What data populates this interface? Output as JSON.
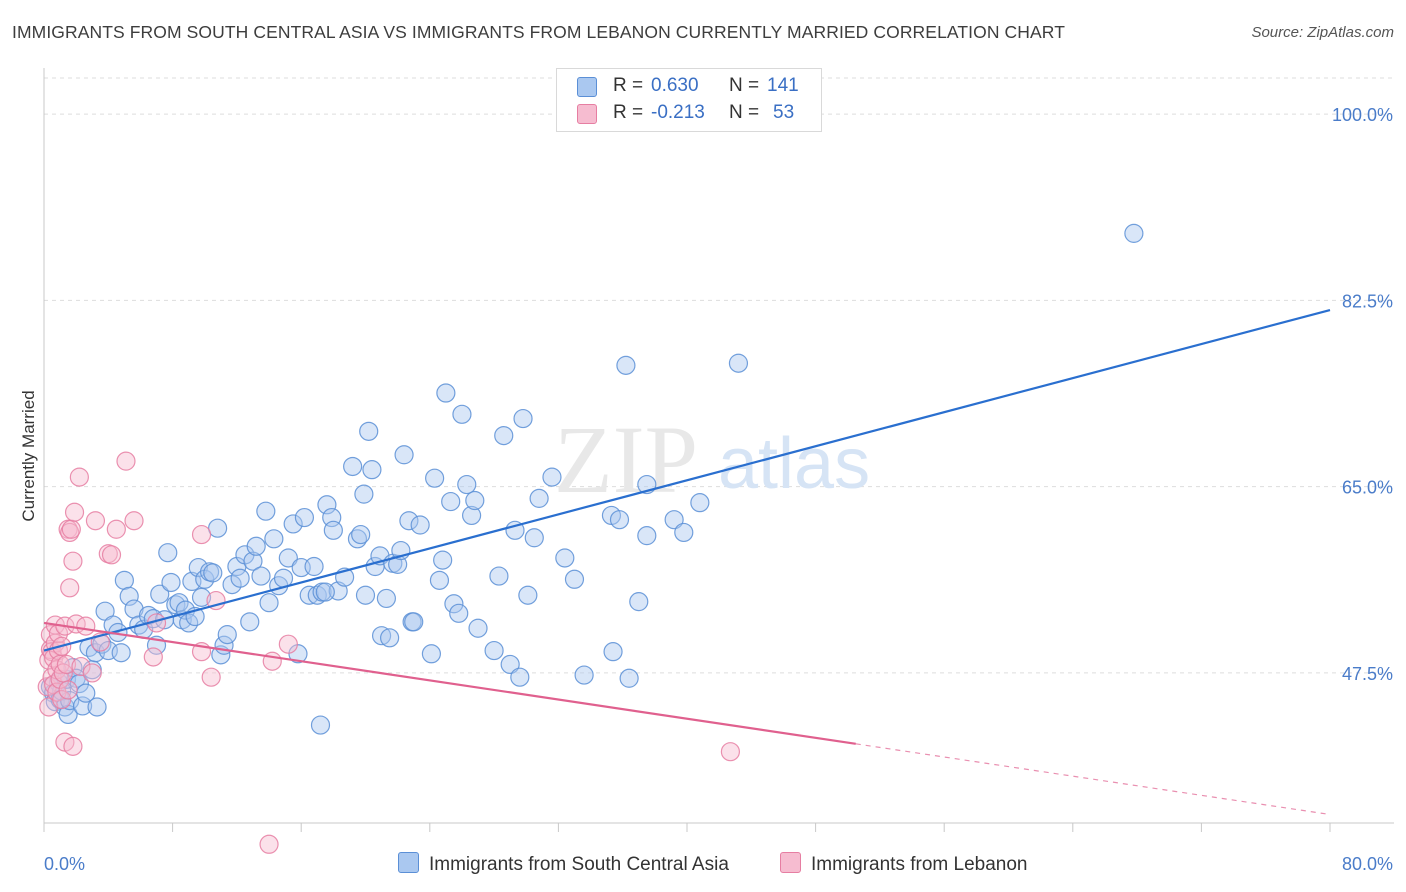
{
  "title": "IMMIGRANTS FROM SOUTH CENTRAL ASIA VS IMMIGRANTS FROM LEBANON CURRENTLY MARRIED CORRELATION CHART",
  "source": "Source: ZipAtlas.com",
  "watermark": {
    "zip": "ZIP",
    "atlas": "atlas"
  },
  "legend": {
    "r_label": "R =",
    "n_label": "N =",
    "entries": [
      {
        "r": "0.630",
        "n": "141"
      },
      {
        "r": "-0.213",
        "n": "53"
      }
    ]
  },
  "colors": {
    "blue_fill": "#aac8f0",
    "blue_stroke": "#5b8fd6",
    "blue_line": "#2a6fcf",
    "pink_fill": "#f6bcd0",
    "pink_stroke": "#e67ea2",
    "pink_line": "#e0608e",
    "tick_text": "#4a7cc9",
    "grid": "#dddddd"
  },
  "chart_data": {
    "type": "scatter",
    "title": "IMMIGRANTS FROM SOUTH CENTRAL ASIA VS IMMIGRANTS FROM LEBANON CURRENTLY MARRIED CORRELATION CHART",
    "xlabel": "",
    "ylabel": "Currently Married",
    "xlim": [
      0,
      80
    ],
    "ylim": [
      33.4,
      103.4
    ],
    "x_tick_labels": [
      "0.0%",
      "80.0%"
    ],
    "y_ticks": [
      47.5,
      65.0,
      82.5,
      100.0
    ],
    "y_tick_labels": [
      "47.5%",
      "65.0%",
      "82.5%",
      "100.0%"
    ],
    "grid": true,
    "legend_position": "bottom",
    "series": [
      {
        "name": "Immigrants from South Central Asia",
        "color": "#aac8f0",
        "trend": {
          "x": [
            0,
            80
          ],
          "y": [
            49.6,
            81.6
          ],
          "solid_to": 80
        },
        "points": [
          [
            0.4,
            46.2
          ],
          [
            0.6,
            45.6
          ],
          [
            0.7,
            44.8
          ],
          [
            0.9,
            46.6
          ],
          [
            1.0,
            45.0
          ],
          [
            1.1,
            45.8
          ],
          [
            1.3,
            44.3
          ],
          [
            1.4,
            46.9
          ],
          [
            1.5,
            43.6
          ],
          [
            1.6,
            44.9
          ],
          [
            1.8,
            48.0
          ],
          [
            2.0,
            47.0
          ],
          [
            2.2,
            46.5
          ],
          [
            2.4,
            44.4
          ],
          [
            2.6,
            45.6
          ],
          [
            2.8,
            49.9
          ],
          [
            3.0,
            47.8
          ],
          [
            3.2,
            49.4
          ],
          [
            3.3,
            44.3
          ],
          [
            3.6,
            50.2
          ],
          [
            3.8,
            53.3
          ],
          [
            4.0,
            49.6
          ],
          [
            4.3,
            52.0
          ],
          [
            4.6,
            51.3
          ],
          [
            4.8,
            49.4
          ],
          [
            5.0,
            56.2
          ],
          [
            5.3,
            54.7
          ],
          [
            5.6,
            53.5
          ],
          [
            5.9,
            52.0
          ],
          [
            6.2,
            51.6
          ],
          [
            6.5,
            52.9
          ],
          [
            6.8,
            52.6
          ],
          [
            7.0,
            50.1
          ],
          [
            7.2,
            54.9
          ],
          [
            7.5,
            52.5
          ],
          [
            7.7,
            58.8
          ],
          [
            7.9,
            56.0
          ],
          [
            8.2,
            53.9
          ],
          [
            8.4,
            54.1
          ],
          [
            8.6,
            52.5
          ],
          [
            8.8,
            53.4
          ],
          [
            9.0,
            52.2
          ],
          [
            9.2,
            56.1
          ],
          [
            9.4,
            52.8
          ],
          [
            9.6,
            57.4
          ],
          [
            9.8,
            54.6
          ],
          [
            10.0,
            56.3
          ],
          [
            10.3,
            57.0
          ],
          [
            10.5,
            56.9
          ],
          [
            10.8,
            61.1
          ],
          [
            11.0,
            49.2
          ],
          [
            11.2,
            50.1
          ],
          [
            11.4,
            51.1
          ],
          [
            11.7,
            55.8
          ],
          [
            12.0,
            57.5
          ],
          [
            12.2,
            56.4
          ],
          [
            12.5,
            58.6
          ],
          [
            12.8,
            52.3
          ],
          [
            13.0,
            58.0
          ],
          [
            13.2,
            59.4
          ],
          [
            13.5,
            56.6
          ],
          [
            13.8,
            62.7
          ],
          [
            14.0,
            54.1
          ],
          [
            14.3,
            60.1
          ],
          [
            14.6,
            55.7
          ],
          [
            14.9,
            56.4
          ],
          [
            15.2,
            58.3
          ],
          [
            15.5,
            61.5
          ],
          [
            15.8,
            49.3
          ],
          [
            16.0,
            57.4
          ],
          [
            16.2,
            62.1
          ],
          [
            16.5,
            54.8
          ],
          [
            16.8,
            57.5
          ],
          [
            17.0,
            54.8
          ],
          [
            17.3,
            55.1
          ],
          [
            17.6,
            63.3
          ],
          [
            17.9,
            62.1
          ],
          [
            18.0,
            60.9
          ],
          [
            18.3,
            55.2
          ],
          [
            17.5,
            55.1
          ],
          [
            17.2,
            42.6
          ],
          [
            18.7,
            56.5
          ],
          [
            19.2,
            66.9
          ],
          [
            19.5,
            60.1
          ],
          [
            19.7,
            60.5
          ],
          [
            19.9,
            64.3
          ],
          [
            20.0,
            54.8
          ],
          [
            20.2,
            70.2
          ],
          [
            20.4,
            66.6
          ],
          [
            20.6,
            57.5
          ],
          [
            20.9,
            58.5
          ],
          [
            21.0,
            51.0
          ],
          [
            21.3,
            54.5
          ],
          [
            21.5,
            50.8
          ],
          [
            21.7,
            57.8
          ],
          [
            22.0,
            57.7
          ],
          [
            22.2,
            59.0
          ],
          [
            22.4,
            68.0
          ],
          [
            22.7,
            61.8
          ],
          [
            22.9,
            52.3
          ],
          [
            23.4,
            61.4
          ],
          [
            23.0,
            52.3
          ],
          [
            24.1,
            49.3
          ],
          [
            24.3,
            65.8
          ],
          [
            24.6,
            56.2
          ],
          [
            24.8,
            58.1
          ],
          [
            25.0,
            73.8
          ],
          [
            25.3,
            63.6
          ],
          [
            25.5,
            54.0
          ],
          [
            25.8,
            53.1
          ],
          [
            26.0,
            71.8
          ],
          [
            26.3,
            65.2
          ],
          [
            26.6,
            62.3
          ],
          [
            26.8,
            63.7
          ],
          [
            27.0,
            51.7
          ],
          [
            28.0,
            49.6
          ],
          [
            28.3,
            56.6
          ],
          [
            28.6,
            69.8
          ],
          [
            29.0,
            48.3
          ],
          [
            29.3,
            60.9
          ],
          [
            29.6,
            47.1
          ],
          [
            29.8,
            71.4
          ],
          [
            30.1,
            54.8
          ],
          [
            30.5,
            60.2
          ],
          [
            30.8,
            63.9
          ],
          [
            31.6,
            65.9
          ],
          [
            32.4,
            58.3
          ],
          [
            33.0,
            56.3
          ],
          [
            33.6,
            47.3
          ],
          [
            35.3,
            62.3
          ],
          [
            35.8,
            61.9
          ],
          [
            35.4,
            49.5
          ],
          [
            36.2,
            76.4
          ],
          [
            36.4,
            47.0
          ],
          [
            37.0,
            54.2
          ],
          [
            37.5,
            60.4
          ],
          [
            37.5,
            65.2
          ],
          [
            39.2,
            61.9
          ],
          [
            39.8,
            60.7
          ],
          [
            40.8,
            63.5
          ],
          [
            43.2,
            76.6
          ],
          [
            67.8,
            88.8
          ]
        ]
      },
      {
        "name": "Immigrants from Lebanon",
        "color": "#f6bcd0",
        "trend": {
          "x": [
            0,
            80
          ],
          "y": [
            52.2,
            34.2
          ],
          "solid_to": 50.5
        },
        "points": [
          [
            0.2,
            46.2
          ],
          [
            0.3,
            44.3
          ],
          [
            0.3,
            48.7
          ],
          [
            0.4,
            49.7
          ],
          [
            0.4,
            51.1
          ],
          [
            0.5,
            47.1
          ],
          [
            0.5,
            49.5
          ],
          [
            0.6,
            46.4
          ],
          [
            0.6,
            48.9
          ],
          [
            0.7,
            52.0
          ],
          [
            0.7,
            50.3
          ],
          [
            0.8,
            45.7
          ],
          [
            0.8,
            47.8
          ],
          [
            0.9,
            49.6
          ],
          [
            0.9,
            51.2
          ],
          [
            1.0,
            46.9
          ],
          [
            1.0,
            48.3
          ],
          [
            1.1,
            45.0
          ],
          [
            1.1,
            50.0
          ],
          [
            1.2,
            47.5
          ],
          [
            1.3,
            51.9
          ],
          [
            1.3,
            41.0
          ],
          [
            1.4,
            48.3
          ],
          [
            1.5,
            45.9
          ],
          [
            1.5,
            61.0
          ],
          [
            1.6,
            60.7
          ],
          [
            1.6,
            55.5
          ],
          [
            1.7,
            61.0
          ],
          [
            1.8,
            40.6
          ],
          [
            1.8,
            58.0
          ],
          [
            1.9,
            62.6
          ],
          [
            2.0,
            52.1
          ],
          [
            2.2,
            65.9
          ],
          [
            2.3,
            48.1
          ],
          [
            3.0,
            47.5
          ],
          [
            3.2,
            61.8
          ],
          [
            3.5,
            50.4
          ],
          [
            4.0,
            58.7
          ],
          [
            4.2,
            58.6
          ],
          [
            4.5,
            61.0
          ],
          [
            5.1,
            67.4
          ],
          [
            5.6,
            61.8
          ],
          [
            6.8,
            49.0
          ],
          [
            7.0,
            52.2
          ],
          [
            9.8,
            49.5
          ],
          [
            9.8,
            60.5
          ],
          [
            10.4,
            47.1
          ],
          [
            10.7,
            54.3
          ],
          [
            14.2,
            48.6
          ],
          [
            15.2,
            50.2
          ],
          [
            14.0,
            31.4
          ],
          [
            42.7,
            40.1
          ],
          [
            2.6,
            51.9
          ]
        ]
      }
    ]
  }
}
